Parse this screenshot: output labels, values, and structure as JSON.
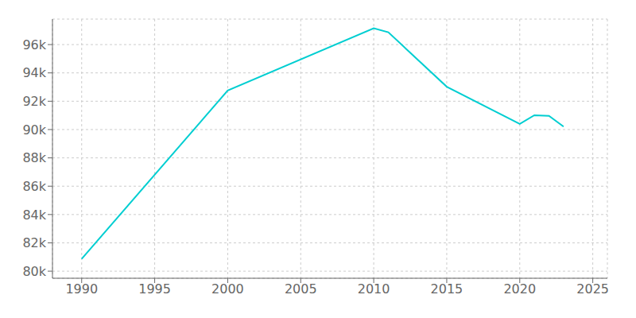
{
  "chart_data": {
    "type": "line",
    "x": [
      1990,
      2000,
      2010,
      2011,
      2015,
      2020,
      2021,
      2022,
      2023
    ],
    "values": [
      80865,
      92757,
      97151,
      96867,
      93025,
      90401,
      91009,
      90968,
      90210
    ],
    "color": "#00CED1",
    "xlim": [
      1988,
      2026
    ],
    "xticks": [
      1990,
      1995,
      2000,
      2005,
      2010,
      2015,
      2020,
      2025
    ],
    "ylim": [
      79500,
      97800
    ],
    "yticks": [
      {
        "value": 80000,
        "label": "80k"
      },
      {
        "value": 82000,
        "label": "82k"
      },
      {
        "value": 84000,
        "label": "84k"
      },
      {
        "value": 86000,
        "label": "86k"
      },
      {
        "value": 88000,
        "label": "88k"
      },
      {
        "value": 90000,
        "label": "90k"
      },
      {
        "value": 92000,
        "label": "92k"
      },
      {
        "value": 94000,
        "label": "94k"
      },
      {
        "value": 96000,
        "label": "96k"
      }
    ],
    "grid": true
  }
}
